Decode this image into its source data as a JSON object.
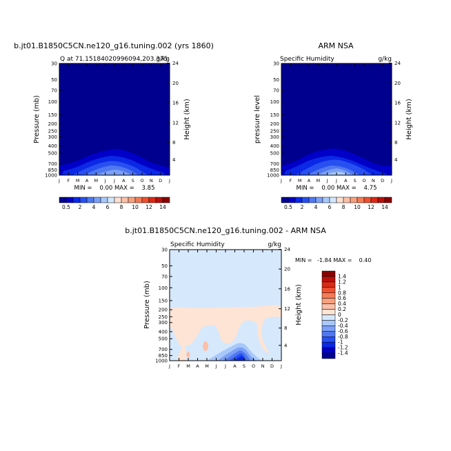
{
  "chart_data": [
    {
      "type": "heatmap",
      "title": "b.jt01.B1850C5CN.ne120_g16.tuning.002 (yrs 1860)",
      "subtitle_left": "Q at 71.15184020996094,203.375",
      "subtitle_right": "g/kg",
      "ylabel": "Pressure (mb)",
      "ylabel_right": "Height (km)",
      "x_ticks": [
        "J",
        "F",
        "M",
        "A",
        "M",
        "J",
        "J",
        "A",
        "S",
        "O",
        "N",
        "D",
        "J"
      ],
      "y_ticks": [
        "30",
        "50",
        "70",
        "100",
        "150",
        "200",
        "250",
        "300",
        "400",
        "500",
        "700",
        "850",
        "1000"
      ],
      "y_ticks_right": [
        "24",
        "20",
        "16",
        "12",
        "8",
        "4"
      ],
      "stats": "MIN =    0.00 MAX =    3.85"
    },
    {
      "type": "heatmap",
      "title": "ARM NSA",
      "subtitle_left": "Specific Humidity",
      "subtitle_right": "g/kg",
      "ylabel": "pressure level",
      "ylabel_right": "Height (km)",
      "x_ticks": [
        "J",
        "F",
        "M",
        "A",
        "M",
        "J",
        "J",
        "A",
        "S",
        "O",
        "N",
        "D",
        "J"
      ],
      "y_ticks": [
        "30",
        "50",
        "70",
        "100",
        "150",
        "200",
        "250",
        "300",
        "400",
        "500",
        "700",
        "850",
        "1000"
      ],
      "y_ticks_right": [
        "24",
        "20",
        "16",
        "12",
        "8",
        "4"
      ],
      "stats": "MIN =    0.00 MAX =    4.75"
    },
    {
      "type": "heatmap",
      "title": "b.jt01.B1850C5CN.ne120_g16.tuning.002 - ARM NSA",
      "subtitle_left": "Specific Humidity",
      "subtitle_right": "g/kg",
      "ylabel": "Pressure (mb)",
      "ylabel_right": "Height (km)",
      "x_ticks": [
        "J",
        "F",
        "M",
        "A",
        "M",
        "J",
        "J",
        "A",
        "S",
        "O",
        "N",
        "D",
        "J"
      ],
      "y_ticks": [
        "30",
        "50",
        "70",
        "100",
        "150",
        "200",
        "250",
        "300",
        "400",
        "500",
        "700",
        "850",
        "1000"
      ],
      "y_ticks_right": [
        "24",
        "20",
        "16",
        "12",
        "8",
        "4"
      ],
      "stats": "MIN =   -1.84 MAX =    0.40"
    }
  ],
  "colorbar_top": {
    "labels": [
      "0.5",
      "2",
      "4",
      "6",
      "8",
      "10",
      "12",
      "14"
    ],
    "colors": [
      "#00008f",
      "#0000c8",
      "#0a28e6",
      "#2850f0",
      "#5078f0",
      "#7ba0f5",
      "#a8c8fa",
      "#d2e6fc",
      "#fde0d0",
      "#fbc0a8",
      "#f7a07e",
      "#f47c56",
      "#ee5030",
      "#da2a16",
      "#b8100c",
      "#8a0000"
    ]
  },
  "colorbar_diff": {
    "labels": [
      "1.4",
      "1.2",
      "1",
      "0.8",
      "0.6",
      "0.4",
      "0.2",
      "0",
      "-0.2",
      "-0.4",
      "-0.6",
      "-0.8",
      "-1",
      "-1.2",
      "-1.4"
    ],
    "colors": [
      "#8a0000",
      "#b8100c",
      "#da2a16",
      "#ee5030",
      "#f47c56",
      "#f7a07e",
      "#fbc0a8",
      "#fde4d4",
      "#d6e8fc",
      "#a8c8fa",
      "#7ba0f5",
      "#5078f0",
      "#2850f0",
      "#0a28e6",
      "#0000c8",
      "#00008f"
    ]
  }
}
